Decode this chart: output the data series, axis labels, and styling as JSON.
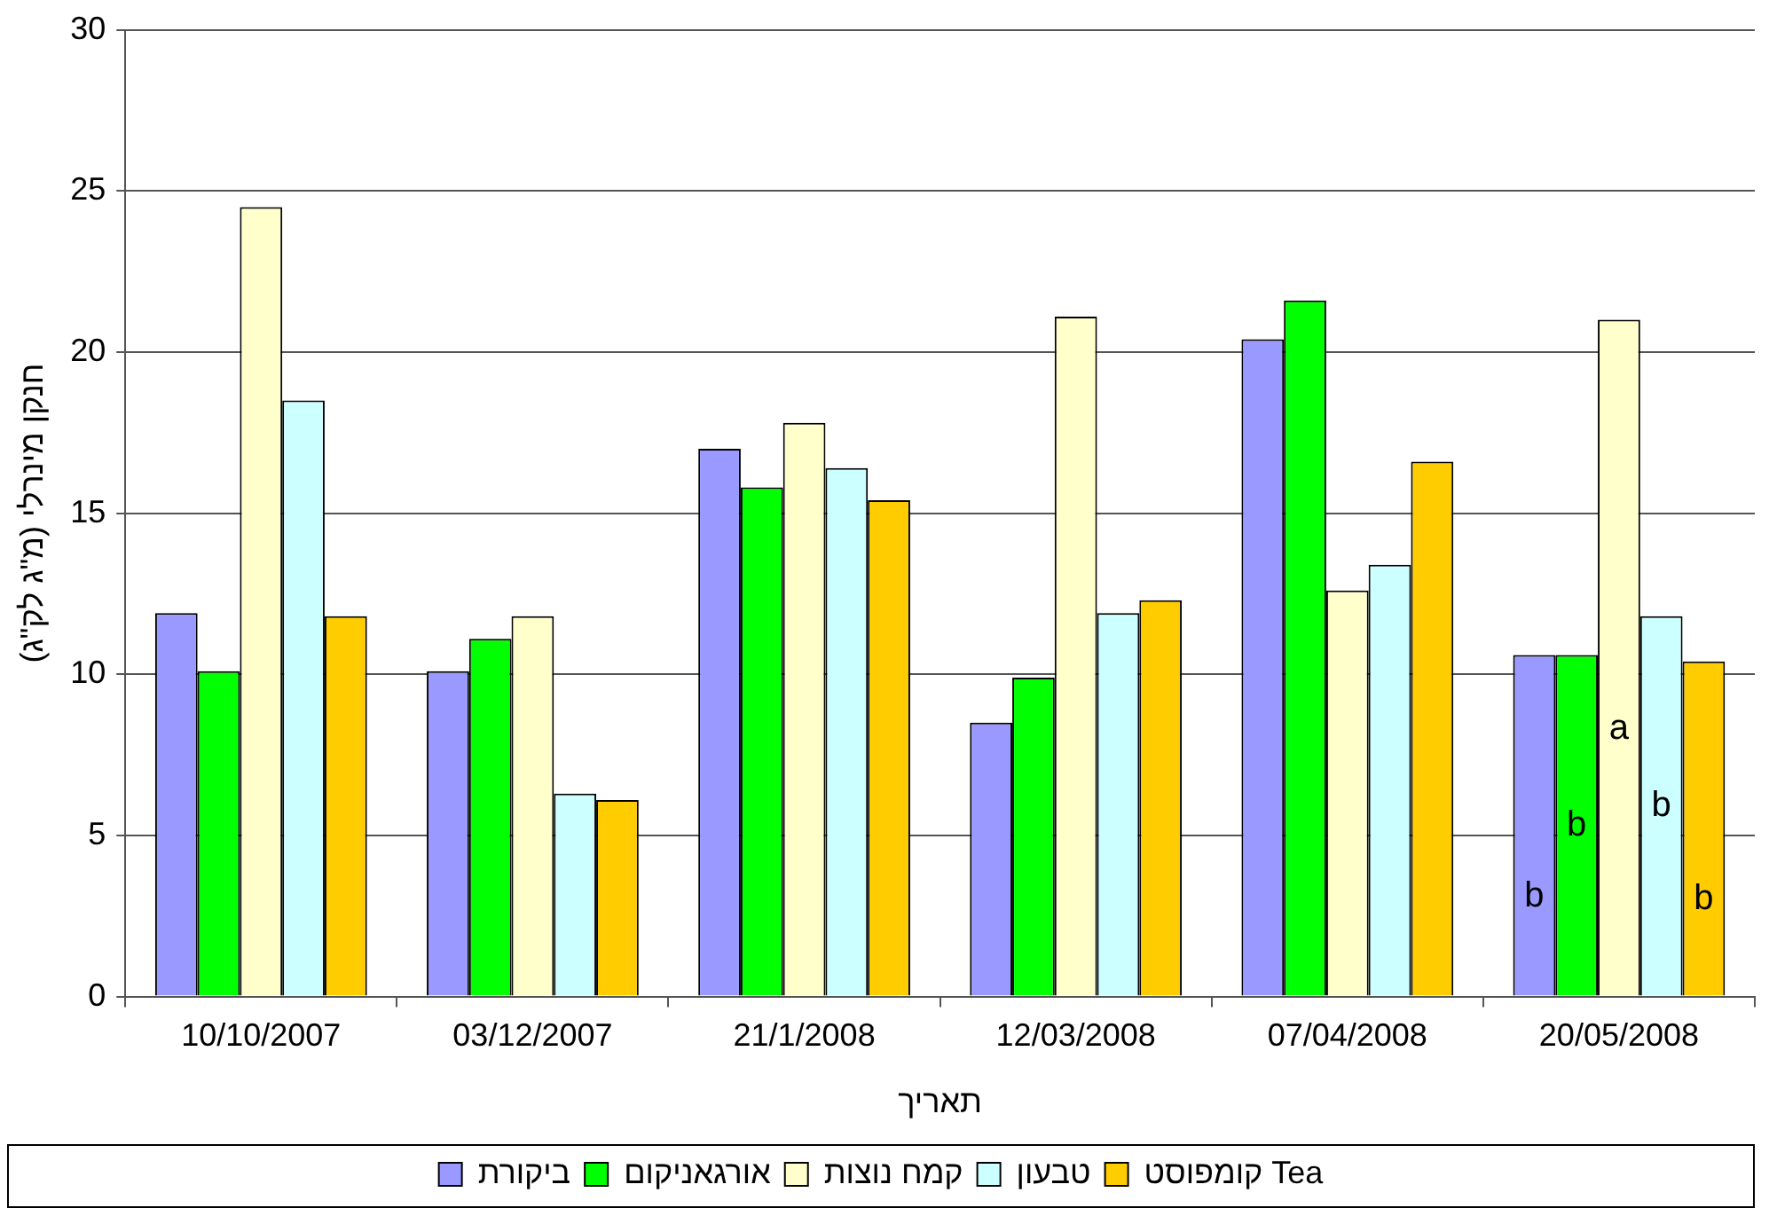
{
  "chart_data": {
    "type": "bar",
    "xlabel": "תאריך",
    "ylabel": "חנקן מינרלי (מ\"ג לק\"ג)",
    "categories": [
      "10/10/2007",
      "03/12/2007",
      "21/1/2008",
      "12/03/2008",
      "07/04/2008",
      "20/05/2008"
    ],
    "series": [
      {
        "name": "ביקורת",
        "color": "#9999ff",
        "values": [
          11.9,
          10.1,
          17.0,
          8.5,
          20.4,
          10.6
        ]
      },
      {
        "name": "אורגאניקום",
        "color": "#00ff00",
        "values": [
          10.1,
          11.1,
          15.8,
          9.9,
          21.6,
          10.6
        ]
      },
      {
        "name": "קמח נוצות",
        "color": "#ffffcc",
        "values": [
          24.5,
          11.8,
          17.8,
          21.1,
          12.6,
          21.0
        ]
      },
      {
        "name": "טבעון",
        "color": "#ccffff",
        "values": [
          18.5,
          6.3,
          16.4,
          11.9,
          13.4,
          11.8
        ]
      },
      {
        "name": "קומפוסט Tea",
        "color": "#ffcc00",
        "values": [
          11.8,
          6.1,
          15.4,
          12.3,
          16.6,
          10.4
        ]
      }
    ],
    "ylim": [
      0,
      30
    ],
    "yticks": [
      0,
      5,
      10,
      15,
      20,
      25,
      30
    ],
    "grid": "y",
    "legend": "bottom",
    "annotations": [
      "b",
      "b",
      "a",
      "b",
      "b"
    ]
  }
}
